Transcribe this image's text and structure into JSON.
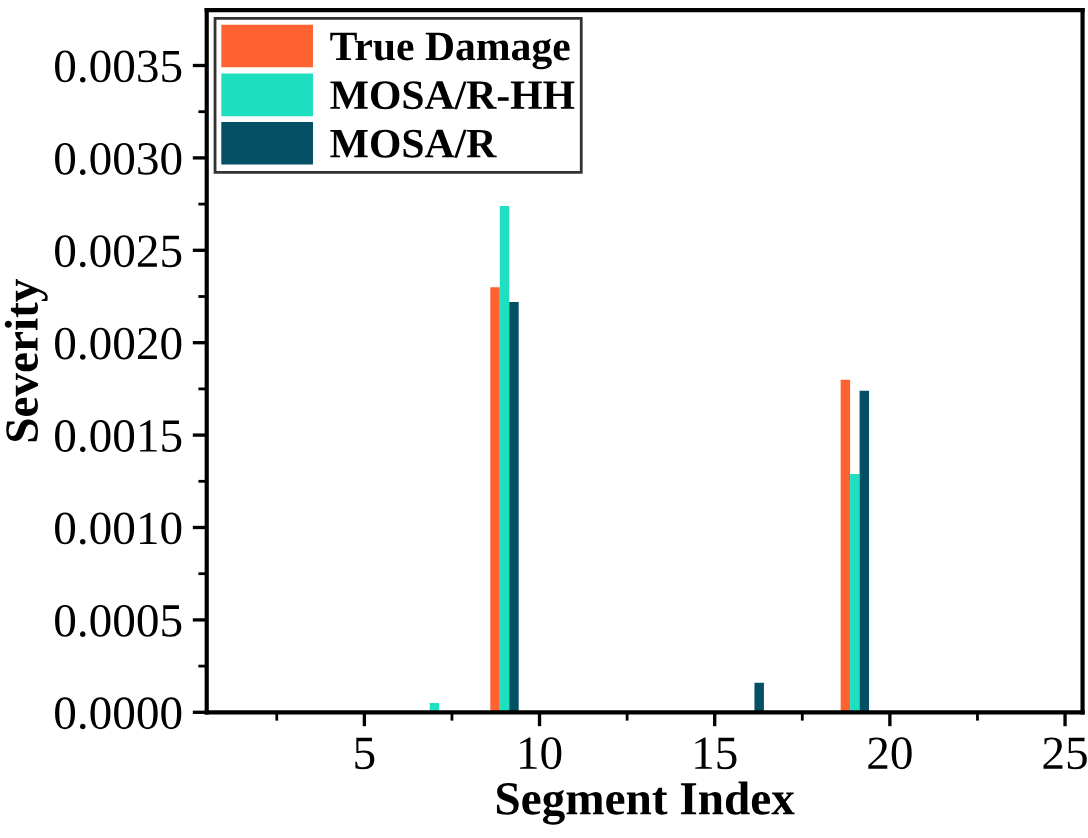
{
  "chart_data": {
    "type": "bar",
    "xlabel": "Segment Index",
    "ylabel": "Severity",
    "x": [
      1,
      2,
      3,
      4,
      5,
      6,
      7,
      8,
      9,
      10,
      11,
      12,
      13,
      14,
      15,
      16,
      17,
      18,
      19,
      20,
      21,
      22,
      23,
      24,
      25
    ],
    "series": [
      {
        "name": "True Damage",
        "color": "#fe6231",
        "values": [
          0,
          0,
          0,
          0,
          0,
          0,
          0,
          0,
          0.0023,
          0,
          0,
          0,
          0,
          0,
          0,
          0,
          0,
          0,
          0.0018,
          0,
          0,
          0,
          0,
          0,
          0
        ]
      },
      {
        "name": "MOSA/R-HH",
        "color": "#1ee0c0",
        "values": [
          0,
          0,
          0,
          0,
          0,
          0,
          5e-05,
          0,
          0.00274,
          0,
          0,
          0,
          0,
          0,
          0,
          0,
          0,
          0,
          0.00129,
          0,
          0,
          0,
          0,
          0,
          0
        ]
      },
      {
        "name": "MOSA/R",
        "color": "#034f63",
        "values": [
          0,
          0,
          0,
          0,
          0,
          0,
          0,
          0,
          0.00222,
          0,
          0,
          0,
          0,
          0,
          0,
          0.00016,
          0,
          0,
          0.00174,
          0,
          0,
          0,
          0,
          0,
          0
        ]
      }
    ],
    "xlim": [
      0.5,
      25.5
    ],
    "xticks": [
      5,
      10,
      15,
      20,
      25
    ],
    "ylim": [
      0,
      0.0038
    ],
    "yticks": [
      {
        "value": 0,
        "label": "0.0000"
      },
      {
        "value": 0.0005,
        "label": "0.0005"
      },
      {
        "value": 0.001,
        "label": "0.0010"
      },
      {
        "value": 0.0015,
        "label": "0.0015"
      },
      {
        "value": 0.002,
        "label": "0.0020"
      },
      {
        "value": 0.0025,
        "label": "0.0025"
      },
      {
        "value": 0.003,
        "label": "0.0030"
      },
      {
        "value": 0.0035,
        "label": "0.0035"
      }
    ],
    "legend": "top left",
    "grid": false
  }
}
